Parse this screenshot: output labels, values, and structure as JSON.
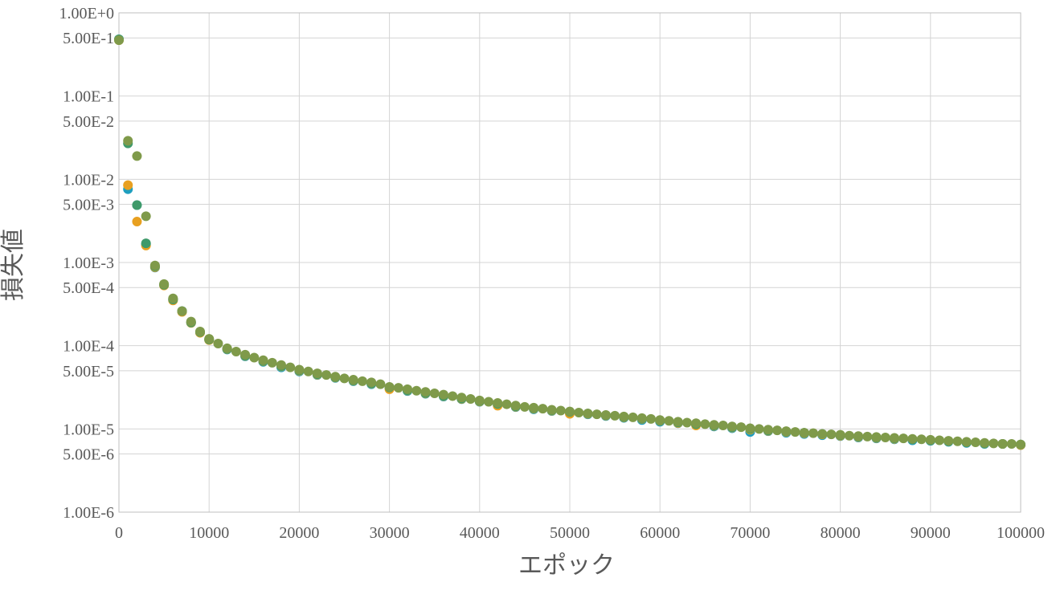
{
  "chart_data": {
    "type": "scatter",
    "title": "",
    "xlabel": "エポック",
    "ylabel": "損失値",
    "x_scale": "linear",
    "y_scale": "log",
    "xlim": [
      0,
      100000
    ],
    "ylim": [
      1e-06,
      1
    ],
    "grid": true,
    "legend": "none",
    "x_tick_values": [
      0,
      10000,
      20000,
      30000,
      40000,
      50000,
      60000,
      70000,
      80000,
      90000,
      100000
    ],
    "x_tick_labels": [
      "0",
      "10000",
      "20000",
      "30000",
      "40000",
      "50000",
      "60000",
      "70000",
      "80000",
      "90000",
      "100000"
    ],
    "y_tick_values": [
      1,
      0.5,
      0.1,
      0.05,
      0.01,
      0.005,
      0.001,
      0.0005,
      0.0001,
      5e-05,
      1e-05,
      5e-06,
      1e-06
    ],
    "y_tick_labels": [
      "1.00E+0",
      "5.00E-1",
      "1.00E-1",
      "5.00E-2",
      "1.00E-2",
      "5.00E-3",
      "1.00E-3",
      "5.00E-4",
      "1.00E-4",
      "5.00E-5",
      "1.00E-5",
      "5.00E-6",
      "1.00E-6"
    ],
    "series": [
      {
        "color": "#1f9fbf",
        "points": [
          [
            0,
            0.48
          ],
          [
            1000,
            0.0076
          ],
          [
            2000,
            0.0049
          ],
          [
            3000,
            0.00165
          ],
          [
            4000,
            0.00087
          ],
          [
            5000,
            0.00054
          ],
          [
            6000,
            0.00036
          ],
          [
            7000,
            0.00026
          ],
          [
            8000,
            0.00019
          ],
          [
            9000,
            0.000145
          ],
          [
            10000,
            0.000118
          ],
          [
            12000,
            9e-05
          ],
          [
            14000,
            7.45e-05
          ],
          [
            16000,
            6.4e-05
          ],
          [
            18000,
            5.5e-05
          ],
          [
            20000,
            4.9e-05
          ],
          [
            22000,
            4.45e-05
          ],
          [
            24000,
            4.1e-05
          ],
          [
            26000,
            3.75e-05
          ],
          [
            28000,
            3.45e-05
          ],
          [
            30000,
            3.1e-05
          ],
          [
            32000,
            2.85e-05
          ],
          [
            34000,
            2.65e-05
          ],
          [
            36000,
            2.45e-05
          ],
          [
            38000,
            2.28e-05
          ],
          [
            40000,
            2.12e-05
          ],
          [
            42000,
            1.95e-05
          ],
          [
            44000,
            1.83e-05
          ],
          [
            46000,
            1.72e-05
          ],
          [
            48000,
            1.64e-05
          ],
          [
            50000,
            1.57e-05
          ],
          [
            52000,
            1.5e-05
          ],
          [
            54000,
            1.43e-05
          ],
          [
            56000,
            1.36e-05
          ],
          [
            58000,
            1.28e-05
          ],
          [
            60000,
            1.22e-05
          ],
          [
            62000,
            1.17e-05
          ],
          [
            64000,
            1.12e-05
          ],
          [
            66000,
            1.07e-05
          ],
          [
            68000,
            1.02e-05
          ],
          [
            70000,
            9.2e-06
          ],
          [
            72000,
            9.4e-06
          ],
          [
            74000,
            9e-06
          ],
          [
            76000,
            8.7e-06
          ],
          [
            78000,
            8.4e-06
          ],
          [
            80000,
            8.2e-06
          ],
          [
            82000,
            7.9e-06
          ],
          [
            84000,
            7.7e-06
          ],
          [
            86000,
            7.5e-06
          ],
          [
            88000,
            7.3e-06
          ],
          [
            90000,
            7.2e-06
          ],
          [
            92000,
            7e-06
          ],
          [
            94000,
            6.8e-06
          ],
          [
            96000,
            6.6e-06
          ],
          [
            98000,
            6.6e-06
          ],
          [
            100000,
            6.4e-06
          ]
        ]
      },
      {
        "color": "#e8a020",
        "points": [
          [
            0,
            0.47
          ],
          [
            1000,
            0.0085
          ],
          [
            2000,
            0.0031
          ],
          [
            3000,
            0.0016
          ],
          [
            4000,
            0.00088
          ],
          [
            5000,
            0.00053
          ],
          [
            6000,
            0.00035
          ],
          [
            7000,
            0.000255
          ],
          [
            8000,
            0.000188
          ],
          [
            9000,
            0.000143
          ],
          [
            10000,
            0.000117
          ],
          [
            12000,
            9.1e-05
          ],
          [
            14000,
            7.55e-05
          ],
          [
            16000,
            6.5e-05
          ],
          [
            18000,
            5.65e-05
          ],
          [
            20000,
            5e-05
          ],
          [
            22000,
            4.5e-05
          ],
          [
            24000,
            4.15e-05
          ],
          [
            26000,
            3.8e-05
          ],
          [
            28000,
            3.5e-05
          ],
          [
            30000,
            3e-05
          ],
          [
            32000,
            2.9e-05
          ],
          [
            34000,
            2.68e-05
          ],
          [
            36000,
            2.48e-05
          ],
          [
            38000,
            2.3e-05
          ],
          [
            40000,
            2.14e-05
          ],
          [
            42000,
            1.9e-05
          ],
          [
            44000,
            1.85e-05
          ],
          [
            46000,
            1.75e-05
          ],
          [
            48000,
            1.66e-05
          ],
          [
            50000,
            1.52e-05
          ],
          [
            52000,
            1.52e-05
          ],
          [
            54000,
            1.45e-05
          ],
          [
            56000,
            1.38e-05
          ],
          [
            58000,
            1.32e-05
          ],
          [
            60000,
            1.25e-05
          ],
          [
            62000,
            1.18e-05
          ],
          [
            64000,
            1.1e-05
          ],
          [
            66000,
            1.09e-05
          ],
          [
            68000,
            1.04e-05
          ],
          [
            70000,
            9.8e-06
          ],
          [
            72000,
            9.5e-06
          ],
          [
            74000,
            9.2e-06
          ],
          [
            76000,
            8.9e-06
          ],
          [
            78000,
            8.6e-06
          ],
          [
            80000,
            8.3e-06
          ],
          [
            82000,
            8e-06
          ],
          [
            84000,
            7.8e-06
          ],
          [
            86000,
            7.6e-06
          ],
          [
            88000,
            7.5e-06
          ],
          [
            90000,
            7.3e-06
          ],
          [
            92000,
            7.1e-06
          ],
          [
            94000,
            6.9e-06
          ],
          [
            96000,
            6.7e-06
          ],
          [
            98000,
            6.6e-06
          ],
          [
            100000,
            6.4e-06
          ]
        ]
      },
      {
        "color": "#3f9a6a",
        "points": [
          [
            0,
            0.48
          ],
          [
            1000,
            0.027
          ],
          [
            2000,
            0.0049
          ],
          [
            3000,
            0.0017
          ],
          [
            4000,
            0.0009
          ],
          [
            5000,
            0.00054
          ],
          [
            6000,
            0.00036
          ],
          [
            7000,
            0.00026
          ],
          [
            8000,
            0.00019
          ],
          [
            9000,
            0.000146
          ],
          [
            10000,
            0.000119
          ],
          [
            12000,
            9.15e-05
          ],
          [
            14000,
            7.6e-05
          ],
          [
            16000,
            6.55e-05
          ],
          [
            18000,
            5.7e-05
          ],
          [
            20000,
            5.05e-05
          ],
          [
            22000,
            4.55e-05
          ],
          [
            24000,
            4.18e-05
          ],
          [
            26000,
            3.83e-05
          ],
          [
            28000,
            3.52e-05
          ],
          [
            30000,
            3.15e-05
          ],
          [
            32000,
            2.92e-05
          ],
          [
            34000,
            2.7e-05
          ],
          [
            36000,
            2.5e-05
          ],
          [
            38000,
            2.32e-05
          ],
          [
            40000,
            2.16e-05
          ],
          [
            42000,
            2e-05
          ],
          [
            44000,
            1.87e-05
          ],
          [
            46000,
            1.77e-05
          ],
          [
            48000,
            1.68e-05
          ],
          [
            50000,
            1.6e-05
          ],
          [
            52000,
            1.53e-05
          ],
          [
            54000,
            1.46e-05
          ],
          [
            56000,
            1.39e-05
          ],
          [
            58000,
            1.33e-05
          ],
          [
            60000,
            1.26e-05
          ],
          [
            62000,
            1.2e-05
          ],
          [
            64000,
            1.14e-05
          ],
          [
            66000,
            1.1e-05
          ],
          [
            68000,
            1.05e-05
          ],
          [
            70000,
            1e-05
          ],
          [
            72000,
            9.6e-06
          ],
          [
            74000,
            9.3e-06
          ],
          [
            76000,
            9e-06
          ],
          [
            78000,
            8.7e-06
          ],
          [
            80000,
            8.4e-06
          ],
          [
            82000,
            8.1e-06
          ],
          [
            84000,
            7.9e-06
          ],
          [
            86000,
            7.7e-06
          ],
          [
            88000,
            7.5e-06
          ],
          [
            90000,
            7.3e-06
          ],
          [
            92000,
            7.1e-06
          ],
          [
            94000,
            6.9e-06
          ],
          [
            96000,
            6.7e-06
          ],
          [
            98000,
            6.6e-06
          ],
          [
            100000,
            6.5e-06
          ]
        ]
      },
      {
        "color": "#7f9a4a",
        "points": [
          [
            0,
            0.47
          ],
          [
            1000,
            0.029
          ],
          [
            2000,
            0.019
          ],
          [
            3000,
            0.0036
          ],
          [
            4000,
            0.00092
          ],
          [
            5000,
            0.00055
          ],
          [
            6000,
            0.00037
          ],
          [
            7000,
            0.00026
          ],
          [
            8000,
            0.000195
          ],
          [
            9000,
            0.000148
          ],
          [
            10000,
            0.000121
          ],
          [
            11000,
            0.000106
          ],
          [
            12000,
            9.3e-05
          ],
          [
            13000,
            8.5e-05
          ],
          [
            14000,
            7.8e-05
          ],
          [
            15000,
            7.2e-05
          ],
          [
            16000,
            6.7e-05
          ],
          [
            17000,
            6.25e-05
          ],
          [
            18000,
            5.85e-05
          ],
          [
            19000,
            5.5e-05
          ],
          [
            20000,
            5.15e-05
          ],
          [
            21000,
            4.9e-05
          ],
          [
            22000,
            4.65e-05
          ],
          [
            23000,
            4.45e-05
          ],
          [
            24000,
            4.25e-05
          ],
          [
            25000,
            4.05e-05
          ],
          [
            26000,
            3.9e-05
          ],
          [
            27000,
            3.75e-05
          ],
          [
            28000,
            3.62e-05
          ],
          [
            29000,
            3.45e-05
          ],
          [
            30000,
            3.2e-05
          ],
          [
            31000,
            3.12e-05
          ],
          [
            32000,
            3e-05
          ],
          [
            33000,
            2.88e-05
          ],
          [
            34000,
            2.78e-05
          ],
          [
            35000,
            2.68e-05
          ],
          [
            36000,
            2.58e-05
          ],
          [
            37000,
            2.48e-05
          ],
          [
            38000,
            2.38e-05
          ],
          [
            39000,
            2.29e-05
          ],
          [
            40000,
            2.2e-05
          ],
          [
            41000,
            2.12e-05
          ],
          [
            42000,
            2.05e-05
          ],
          [
            43000,
            1.98e-05
          ],
          [
            44000,
            1.91e-05
          ],
          [
            45000,
            1.84e-05
          ],
          [
            46000,
            1.8e-05
          ],
          [
            47000,
            1.75e-05
          ],
          [
            48000,
            1.7e-05
          ],
          [
            49000,
            1.66e-05
          ],
          [
            50000,
            1.62e-05
          ],
          [
            51000,
            1.57e-05
          ],
          [
            52000,
            1.53e-05
          ],
          [
            53000,
            1.5e-05
          ],
          [
            54000,
            1.47e-05
          ],
          [
            55000,
            1.44e-05
          ],
          [
            56000,
            1.41e-05
          ],
          [
            57000,
            1.38e-05
          ],
          [
            58000,
            1.35e-05
          ],
          [
            59000,
            1.32e-05
          ],
          [
            60000,
            1.28e-05
          ],
          [
            61000,
            1.25e-05
          ],
          [
            62000,
            1.22e-05
          ],
          [
            63000,
            1.19e-05
          ],
          [
            64000,
            1.17e-05
          ],
          [
            65000,
            1.14e-05
          ],
          [
            66000,
            1.12e-05
          ],
          [
            67000,
            1.1e-05
          ],
          [
            68000,
            1.07e-05
          ],
          [
            69000,
            1.05e-05
          ],
          [
            70000,
            1.02e-05
          ],
          [
            71000,
            1e-05
          ],
          [
            72000,
            9.8e-06
          ],
          [
            73000,
            9.6e-06
          ],
          [
            74000,
            9.4e-06
          ],
          [
            75000,
            9.2e-06
          ],
          [
            76000,
            9e-06
          ],
          [
            77000,
            8.9e-06
          ],
          [
            78000,
            8.7e-06
          ],
          [
            79000,
            8.6e-06
          ],
          [
            80000,
            8.5e-06
          ],
          [
            81000,
            8.3e-06
          ],
          [
            82000,
            8.2e-06
          ],
          [
            83000,
            8.1e-06
          ],
          [
            84000,
            8e-06
          ],
          [
            85000,
            7.9e-06
          ],
          [
            86000,
            7.8e-06
          ],
          [
            87000,
            7.7e-06
          ],
          [
            88000,
            7.6e-06
          ],
          [
            89000,
            7.5e-06
          ],
          [
            90000,
            7.4e-06
          ],
          [
            91000,
            7.3e-06
          ],
          [
            92000,
            7.2e-06
          ],
          [
            93000,
            7.1e-06
          ],
          [
            94000,
            7e-06
          ],
          [
            95000,
            6.9e-06
          ],
          [
            96000,
            6.8e-06
          ],
          [
            97000,
            6.7e-06
          ],
          [
            98000,
            6.6e-06
          ],
          [
            99000,
            6.6e-06
          ],
          [
            100000,
            6.5e-06
          ]
        ]
      }
    ]
  }
}
